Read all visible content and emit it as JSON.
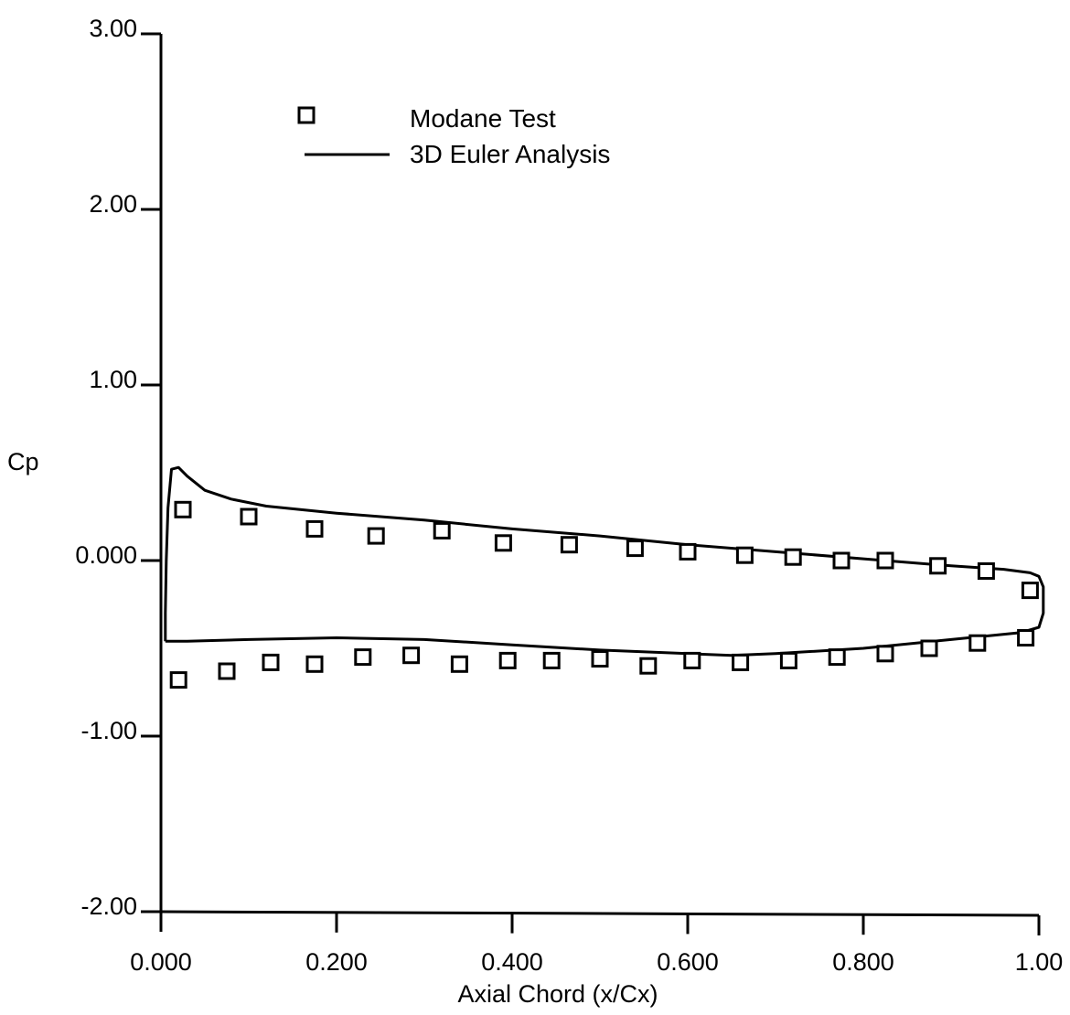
{
  "chart_data": {
    "type": "scatter",
    "xlabel": "Axial Chord (x/Cx)",
    "ylabel": "Cp",
    "xlim": [
      0,
      1
    ],
    "ylim": [
      -2,
      3
    ],
    "x_ticks": [
      "0.000",
      "0.200",
      "0.400",
      "0.600",
      "0.800",
      "1.00"
    ],
    "y_ticks": [
      "-2.00",
      "-1.00",
      "0.000",
      "1.00",
      "2.00",
      "3.00"
    ],
    "grid": false,
    "legend_position": "top-left",
    "series": [
      {
        "name": "Modane Test",
        "kind": "markers",
        "marker": "open-square",
        "points": [
          [
            0.025,
            0.29
          ],
          [
            0.1,
            0.25
          ],
          [
            0.175,
            0.18
          ],
          [
            0.245,
            0.14
          ],
          [
            0.32,
            0.17
          ],
          [
            0.39,
            0.1
          ],
          [
            0.465,
            0.09
          ],
          [
            0.54,
            0.07
          ],
          [
            0.6,
            0.05
          ],
          [
            0.665,
            0.03
          ],
          [
            0.72,
            0.02
          ],
          [
            0.775,
            0.0
          ],
          [
            0.825,
            0.0
          ],
          [
            0.885,
            -0.03
          ],
          [
            0.94,
            -0.06
          ],
          [
            0.99,
            -0.17
          ],
          [
            0.02,
            -0.68
          ],
          [
            0.075,
            -0.63
          ],
          [
            0.125,
            -0.58
          ],
          [
            0.175,
            -0.59
          ],
          [
            0.23,
            -0.55
          ],
          [
            0.285,
            -0.54
          ],
          [
            0.34,
            -0.59
          ],
          [
            0.395,
            -0.57
          ],
          [
            0.445,
            -0.57
          ],
          [
            0.5,
            -0.56
          ],
          [
            0.555,
            -0.6
          ],
          [
            0.605,
            -0.57
          ],
          [
            0.66,
            -0.58
          ],
          [
            0.715,
            -0.57
          ],
          [
            0.77,
            -0.55
          ],
          [
            0.825,
            -0.53
          ],
          [
            0.875,
            -0.5
          ],
          [
            0.93,
            -0.47
          ],
          [
            0.985,
            -0.44
          ]
        ]
      },
      {
        "name": "3D Euler Analysis",
        "kind": "line",
        "points": [
          [
            0.005,
            -0.46
          ],
          [
            0.005,
            -0.3
          ],
          [
            0.006,
            0.0
          ],
          [
            0.008,
            0.3
          ],
          [
            0.012,
            0.52
          ],
          [
            0.02,
            0.53
          ],
          [
            0.03,
            0.48
          ],
          [
            0.05,
            0.4
          ],
          [
            0.08,
            0.35
          ],
          [
            0.12,
            0.31
          ],
          [
            0.2,
            0.27
          ],
          [
            0.3,
            0.23
          ],
          [
            0.4,
            0.18
          ],
          [
            0.5,
            0.14
          ],
          [
            0.6,
            0.09
          ],
          [
            0.7,
            0.05
          ],
          [
            0.8,
            0.01
          ],
          [
            0.9,
            -0.03
          ],
          [
            0.96,
            -0.05
          ],
          [
            0.99,
            -0.07
          ],
          [
            1.0,
            -0.09
          ],
          [
            1.005,
            -0.15
          ],
          [
            1.005,
            -0.3
          ],
          [
            1.0,
            -0.38
          ],
          [
            0.98,
            -0.41
          ],
          [
            0.9,
            -0.45
          ],
          [
            0.8,
            -0.5
          ],
          [
            0.7,
            -0.53
          ],
          [
            0.65,
            -0.54
          ],
          [
            0.6,
            -0.53
          ],
          [
            0.5,
            -0.51
          ],
          [
            0.4,
            -0.48
          ],
          [
            0.3,
            -0.45
          ],
          [
            0.2,
            -0.44
          ],
          [
            0.1,
            -0.45
          ],
          [
            0.03,
            -0.46
          ],
          [
            0.005,
            -0.46
          ]
        ]
      }
    ]
  }
}
